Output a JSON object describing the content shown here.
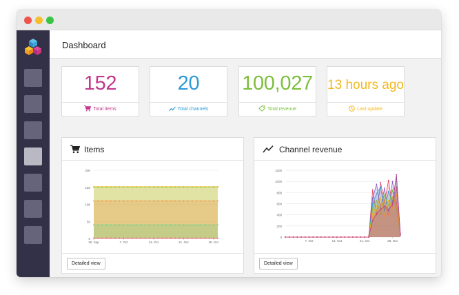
{
  "window": {
    "traffic_lights": [
      "close",
      "minimize",
      "maximize"
    ]
  },
  "sidebar": {
    "logo_icon": "hexagon-cubes-logo",
    "items": [
      {
        "icon": "nav-placeholder",
        "active": false
      },
      {
        "icon": "nav-placeholder",
        "active": false
      },
      {
        "icon": "nav-placeholder",
        "active": false
      },
      {
        "icon": "nav-placeholder",
        "active": true
      },
      {
        "icon": "nav-placeholder",
        "active": false
      },
      {
        "icon": "nav-placeholder",
        "active": false
      },
      {
        "icon": "nav-placeholder",
        "active": false
      }
    ]
  },
  "header": {
    "title": "Dashboard"
  },
  "stats": [
    {
      "value": "152",
      "label": "Total items",
      "icon": "cart-icon",
      "color": "#c2378a"
    },
    {
      "value": "20",
      "label": "Total channels",
      "icon": "trend-icon",
      "color": "#2a9ad6"
    },
    {
      "value": "100,027",
      "label": "Total revenue",
      "icon": "tag-icon",
      "color": "#7cbf3d"
    },
    {
      "value": "13 hours ago",
      "label": "Last update",
      "icon": "clock-icon",
      "color": "#f2b81c"
    }
  ],
  "panels": {
    "items": {
      "title": "Items",
      "icon": "cart-icon",
      "button": "Detailed view"
    },
    "revenue": {
      "title": "Channel revenue",
      "icon": "trend-icon",
      "button": "Detailed view"
    }
  },
  "chart_data": [
    {
      "type": "area",
      "y_ticks": [
        "200",
        "150",
        "100",
        "50",
        "0"
      ],
      "x_ticks": [
        "30. Sep",
        "7. Oct",
        "14. Oct",
        "21. Oct",
        "28. Oct"
      ],
      "ylim": [
        0,
        200
      ],
      "x_count": 30,
      "series": [
        {
          "values": [
            152,
            152,
            152,
            152,
            152,
            152,
            152,
            152,
            152,
            152,
            152,
            152,
            152,
            152,
            152,
            152,
            152,
            152,
            152,
            152,
            152,
            152,
            152,
            152,
            152,
            152,
            152,
            152,
            152,
            152
          ],
          "color": "#e8c43a"
        },
        {
          "values": [
            150,
            150,
            150,
            150,
            150,
            150,
            150,
            150,
            150,
            150,
            150,
            150,
            150,
            150,
            150,
            150,
            150,
            150,
            150,
            150,
            150,
            150,
            150,
            150,
            150,
            150,
            150,
            150,
            150,
            150
          ],
          "color": "#a5c74b"
        },
        {
          "values": [
            110,
            110,
            110,
            110,
            110,
            110,
            110,
            110,
            110,
            110,
            110,
            110,
            110,
            110,
            110,
            110,
            110,
            110,
            110,
            110,
            110,
            110,
            110,
            110,
            110,
            110,
            110,
            110,
            110,
            110
          ],
          "color": "#ef8c3a"
        },
        {
          "values": [
            40,
            40,
            40,
            40,
            40,
            40,
            40,
            40,
            40,
            40,
            40,
            40,
            40,
            40,
            40,
            40,
            40,
            40,
            40,
            40,
            40,
            40,
            40,
            40,
            40,
            40,
            40,
            40,
            40,
            40
          ],
          "color": "#6fd08a"
        },
        {
          "values": [
            1,
            1,
            1,
            1,
            1,
            1,
            1,
            1,
            1,
            1,
            1,
            1,
            1,
            1,
            1,
            1,
            1,
            1,
            1,
            1,
            1,
            1,
            1,
            1,
            1,
            1,
            1,
            1,
            1,
            1
          ],
          "color": "#e2445c"
        }
      ]
    },
    {
      "type": "line",
      "y_ticks": [
        "1200",
        "1000",
        "800",
        "600",
        "400",
        "200",
        "0"
      ],
      "x_ticks": [
        "7. Oct",
        "14. Oct",
        "21. Oct",
        "28. Oct"
      ],
      "ylim": [
        0,
        1300
      ],
      "x_count": 30,
      "series": [
        {
          "values": [
            0,
            0,
            0,
            0,
            0,
            0,
            0,
            0,
            0,
            0,
            0,
            0,
            0,
            0,
            0,
            0,
            0,
            0,
            0,
            0,
            0,
            0,
            850,
            400,
            980,
            620,
            1020,
            560,
            900,
            40
          ],
          "color": "#e2445c"
        },
        {
          "values": [
            0,
            0,
            0,
            0,
            0,
            0,
            0,
            0,
            0,
            0,
            0,
            0,
            0,
            0,
            0,
            0,
            0,
            0,
            0,
            0,
            0,
            0,
            700,
            950,
            520,
            880,
            460,
            1000,
            620,
            40
          ],
          "color": "#8a5cc7"
        },
        {
          "values": [
            0,
            0,
            0,
            0,
            0,
            0,
            0,
            0,
            0,
            0,
            0,
            0,
            0,
            0,
            0,
            0,
            0,
            0,
            0,
            0,
            0,
            0,
            600,
            780,
            900,
            480,
            820,
            640,
            1080,
            40
          ],
          "color": "#2a9ad6"
        },
        {
          "values": [
            0,
            0,
            0,
            0,
            0,
            0,
            0,
            0,
            0,
            0,
            0,
            0,
            0,
            0,
            0,
            0,
            0,
            0,
            0,
            0,
            0,
            0,
            520,
            660,
            420,
            760,
            580,
            840,
            500,
            40
          ],
          "color": "#7cbf3d"
        },
        {
          "values": [
            0,
            0,
            0,
            0,
            0,
            0,
            0,
            0,
            0,
            0,
            0,
            0,
            0,
            0,
            0,
            0,
            0,
            0,
            0,
            0,
            0,
            0,
            420,
            560,
            700,
            380,
            660,
            520,
            780,
            40
          ],
          "color": "#f2b81c"
        },
        {
          "values": [
            0,
            0,
            0,
            0,
            0,
            0,
            0,
            0,
            0,
            0,
            0,
            0,
            0,
            0,
            0,
            0,
            0,
            0,
            0,
            0,
            0,
            0,
            360,
            480,
            580,
            650,
            400,
            720,
            600,
            40
          ],
          "color": "#ef8c3a"
        },
        {
          "values": [
            0,
            0,
            0,
            0,
            0,
            0,
            0,
            0,
            0,
            0,
            0,
            0,
            0,
            0,
            0,
            0,
            0,
            0,
            0,
            0,
            0,
            0,
            300,
            420,
            500,
            560,
            480,
            600,
            1120,
            40
          ],
          "color": "#c2378a"
        }
      ]
    }
  ]
}
